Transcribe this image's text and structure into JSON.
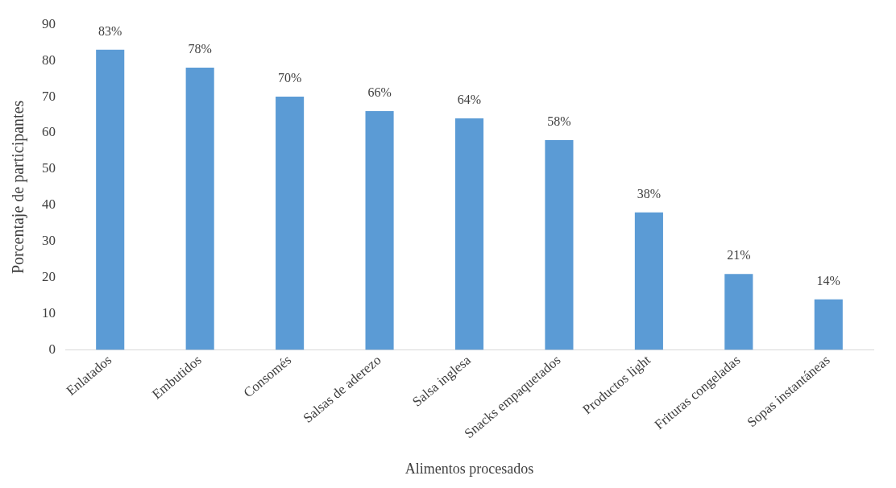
{
  "chart_data": {
    "type": "bar",
    "xlabel": "Alimentos procesados",
    "ylabel": "Porcentaje de participantes",
    "categories": [
      "Enlatados",
      "Embutidos",
      "Consomés",
      "Salsas de aderezo",
      "Salsa inglesa",
      "Snacks empaquetados",
      "Productos light",
      "Frituras congeladas",
      "Sopas instantáneas"
    ],
    "values": [
      83,
      78,
      70,
      66,
      64,
      58,
      38,
      21,
      14
    ],
    "value_labels": [
      "83%",
      "78%",
      "70%",
      "66%",
      "64%",
      "58%",
      "38%",
      "21%",
      "14%"
    ],
    "color": "#5b9bd5",
    "ylim": [
      0,
      90
    ],
    "yticks": [
      0,
      10,
      20,
      30,
      40,
      50,
      60,
      70,
      80,
      90
    ],
    "grid": false,
    "legend": false
  }
}
